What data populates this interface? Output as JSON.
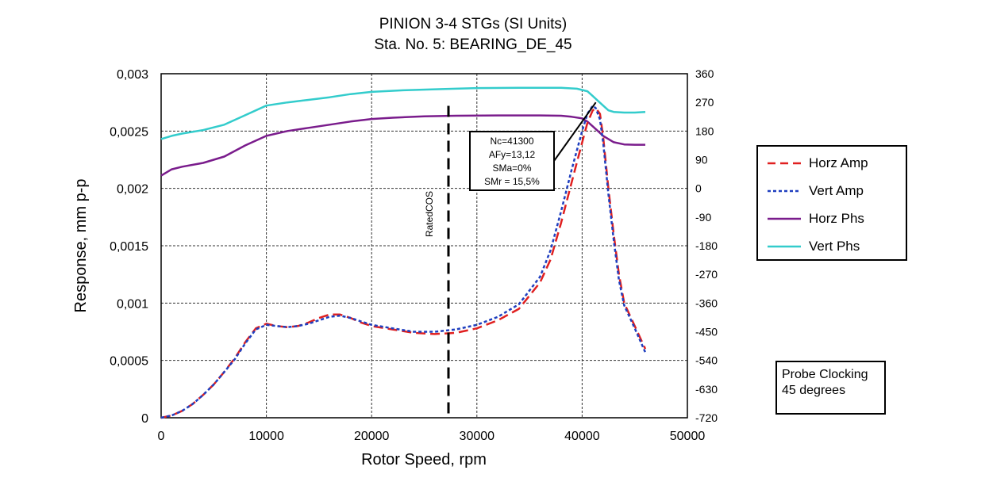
{
  "chart_data": {
    "type": "line",
    "title": "PINION 3-4 STGs (SI Units)",
    "subtitle": "Sta. No. 5: BEARING_DE_45",
    "xlabel": "Rotor Speed, rpm",
    "ylabel": "Response, mm p-p",
    "xlim": [
      0,
      50000
    ],
    "ylim": [
      0,
      0.003
    ],
    "y2lim": [
      -720,
      360
    ],
    "x_ticks": [
      "0",
      "10000",
      "20000",
      "30000",
      "40000",
      "50000"
    ],
    "y_ticks": [
      "0",
      "0,0005",
      "0,001",
      "0,0015",
      "0,002",
      "0,0025",
      "0,003"
    ],
    "y2_ticks": [
      "-720",
      "-630",
      "-540",
      "-450",
      "-360",
      "-270",
      "-180",
      "-90",
      "0",
      "90",
      "180",
      "270",
      "360"
    ],
    "grid": true,
    "legend_position": "right",
    "series": [
      {
        "name": "Horz Amp",
        "axis": "left",
        "color": "#e02020",
        "style": "dashed",
        "x": [
          0,
          1000,
          2000,
          3000,
          4000,
          5000,
          6000,
          7000,
          8000,
          9000,
          10000,
          11000,
          12000,
          13000,
          14000,
          15000,
          16000,
          17000,
          18000,
          19000,
          20000,
          22000,
          24000,
          26000,
          28000,
          30000,
          32000,
          34000,
          36000,
          37000,
          38000,
          39000,
          40000,
          40500,
          41000,
          41300,
          41700,
          42000,
          42500,
          43000,
          43500,
          44000,
          45000,
          46000
        ],
        "values": [
          0,
          2e-05,
          6e-05,
          0.00012,
          0.0002,
          0.00029,
          0.0004,
          0.00052,
          0.00066,
          0.00078,
          0.00082,
          0.0008,
          0.00079,
          0.0008,
          0.00083,
          0.00087,
          0.0009,
          0.0009,
          0.00087,
          0.00083,
          0.0008,
          0.00077,
          0.00074,
          0.00073,
          0.00074,
          0.00078,
          0.00085,
          0.00095,
          0.00118,
          0.00138,
          0.0017,
          0.00205,
          0.0024,
          0.00257,
          0.00268,
          0.0027,
          0.00265,
          0.00245,
          0.002,
          0.0016,
          0.00125,
          0.001,
          0.0008,
          0.0006
        ]
      },
      {
        "name": "Vert Amp",
        "axis": "left",
        "color": "#1f3fbf",
        "style": "dotted",
        "x": [
          0,
          1000,
          2000,
          3000,
          4000,
          5000,
          6000,
          7000,
          8000,
          9000,
          10000,
          11000,
          12000,
          13000,
          14000,
          15000,
          16000,
          17000,
          18000,
          19000,
          20000,
          22000,
          24000,
          26000,
          28000,
          30000,
          32000,
          34000,
          36000,
          37000,
          38000,
          39000,
          40000,
          40500,
          41000,
          41300,
          41700,
          42000,
          42500,
          43000,
          43500,
          44000,
          45000,
          46000
        ],
        "values": [
          0,
          2e-05,
          6e-05,
          0.00012,
          0.0002,
          0.00029,
          0.0004,
          0.00051,
          0.00065,
          0.00077,
          0.00081,
          0.0008,
          0.00079,
          0.0008,
          0.00082,
          0.00085,
          0.00088,
          0.00089,
          0.00087,
          0.00084,
          0.00081,
          0.00078,
          0.00075,
          0.00075,
          0.00077,
          0.00081,
          0.00088,
          0.00099,
          0.00123,
          0.00146,
          0.0018,
          0.00216,
          0.0025,
          0.00265,
          0.00272,
          0.0027,
          0.0026,
          0.0024,
          0.00195,
          0.00155,
          0.0012,
          0.00098,
          0.00078,
          0.00057
        ]
      },
      {
        "name": "Horz Phs",
        "axis": "right",
        "color": "#7a1c8c",
        "style": "solid",
        "x": [
          0,
          1000,
          2000,
          4000,
          6000,
          8000,
          10000,
          12000,
          14000,
          16000,
          18000,
          20000,
          22000,
          25000,
          28000,
          32000,
          36000,
          38000,
          39000,
          40000,
          40500,
          41000,
          41500,
          42000,
          43000,
          44000,
          45000,
          46000
        ],
        "values": [
          40,
          60,
          68,
          80,
          100,
          135,
          165,
          180,
          190,
          200,
          210,
          218,
          222,
          226,
          228,
          229,
          229,
          228,
          225,
          220,
          210,
          195,
          180,
          165,
          145,
          138,
          137,
          137
        ]
      },
      {
        "name": "Vert Phs",
        "axis": "right",
        "color": "#33cccc",
        "style": "solid",
        "x": [
          0,
          1000,
          2000,
          4000,
          6000,
          8000,
          10000,
          12000,
          14000,
          16000,
          18000,
          20000,
          23000,
          27000,
          30000,
          34000,
          38000,
          39500,
          40500,
          41000,
          41500,
          42000,
          42500,
          43000,
          44000,
          45000,
          46000
        ],
        "values": [
          155,
          165,
          172,
          183,
          200,
          230,
          260,
          270,
          278,
          286,
          296,
          303,
          308,
          312,
          315,
          316,
          316,
          313,
          305,
          290,
          275,
          260,
          245,
          240,
          238,
          238,
          240
        ]
      }
    ],
    "reference_line": {
      "x": 27300,
      "label": "RatedCOS"
    },
    "annotation": {
      "lines": [
        "Nc=41300",
        "AFy=13,12",
        "SMa=0%",
        "SMr = 15,5%"
      ],
      "points_to": {
        "x": 41300,
        "y2": 270
      }
    },
    "note": [
      "Probe Clocking",
      "45 degrees"
    ]
  }
}
